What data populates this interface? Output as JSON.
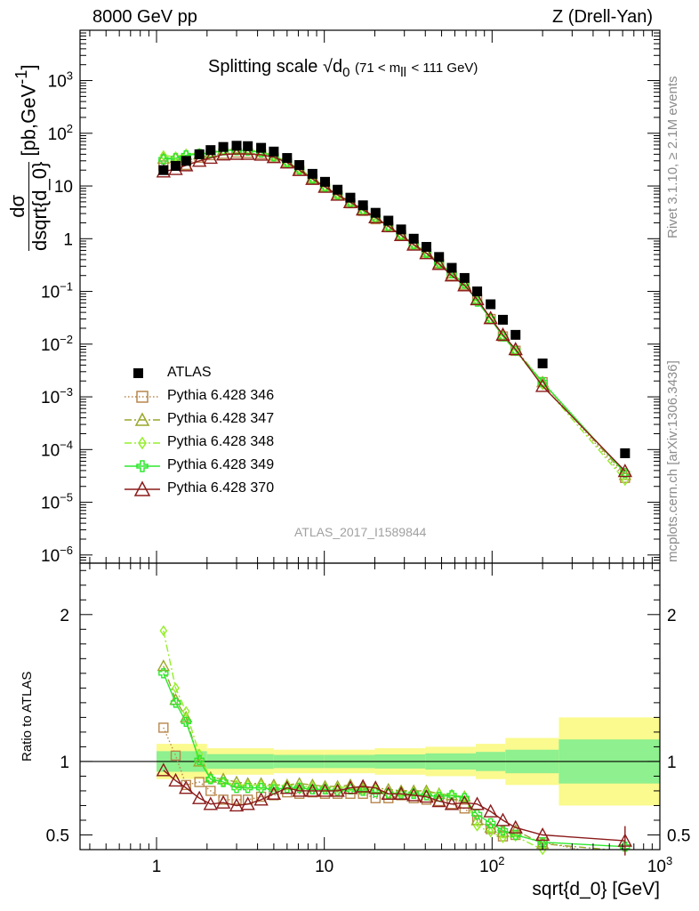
{
  "header": {
    "left": "8000 GeV pp",
    "right": "Z (Drell-Yan)"
  },
  "side_texts": {
    "rivet": "Rivet 3.1.10, ≥ 2.1M events",
    "mcplots": "mcplots.cern.ch [arXiv:1306.3436]"
  },
  "watermark": "ATLAS_2017_I1589844",
  "colors": {
    "ATLAS": "#000000",
    "346": "#b8864b",
    "347": "#9aa62a",
    "348": "#95ee2a",
    "349": "#2ee82e",
    "370": "#8b1a1a",
    "band_inner": "#8ef08e",
    "band_outer": "#fafa8e"
  },
  "chart_data": {
    "type": "scatter",
    "title": "Splitting scale",
    "title_symbol": "√d",
    "title_sub": "0",
    "title_range": "(71 < m",
    "title_range_sub": "ll",
    "title_range_end": "< 111 GeV)",
    "xlabel": "sqrt{d_0} [GeV]",
    "ylabel": {
      "numerator": "dσ",
      "denominator": "dsqrt{d_0}",
      "unit": "[pb,GeV",
      "unit_sup": "-1",
      "unit_end": "]"
    },
    "ratio_ylabel": "Ratio to ATLAS",
    "xscale": "log",
    "xlim": [
      0.35,
      1000
    ],
    "yscale": "log",
    "ylim": [
      7e-07,
      9000
    ],
    "ratio_ylim": [
      0.4,
      2.35
    ],
    "legend_position": "bottom-left",
    "x_ticks": [
      {
        "base": "1",
        "exp": ""
      },
      {
        "base": "10",
        "exp": ""
      },
      {
        "base": "10",
        "exp": "2"
      },
      {
        "base": "10",
        "exp": "3"
      }
    ],
    "y_ticks": [
      {
        "base": "10",
        "exp": "3"
      },
      {
        "base": "10",
        "exp": "2"
      },
      {
        "base": "10",
        "exp": ""
      },
      {
        "base": "1",
        "exp": ""
      },
      {
        "base": "10",
        "exp": "−1"
      },
      {
        "base": "10",
        "exp": "−2"
      },
      {
        "base": "10",
        "exp": "−3"
      },
      {
        "base": "10",
        "exp": "−4"
      },
      {
        "base": "10",
        "exp": "−5"
      },
      {
        "base": "10",
        "exp": "−6"
      }
    ],
    "ratio_ticks": [
      "2",
      "1",
      "0.5"
    ],
    "x": [
      1.1,
      1.3,
      1.5,
      1.8,
      2.1,
      2.5,
      3.0,
      3.5,
      4.2,
      5.0,
      6.0,
      7.1,
      8.5,
      10.1,
      12.0,
      14.3,
      17.0,
      20.2,
      24.1,
      28.7,
      34.1,
      40.6,
      48.3,
      57.5,
      68.5,
      81.5,
      98,
      116,
      138,
      200,
      620
    ],
    "atlas": {
      "name": "ATLAS",
      "values": [
        20,
        24,
        30,
        40,
        48,
        55,
        58,
        57,
        53,
        45,
        34,
        25,
        17,
        12,
        8.5,
        6.0,
        4.3,
        3.1,
        2.2,
        1.5,
        1.0,
        0.7,
        0.45,
        0.28,
        0.18,
        0.1,
        0.057,
        0.029,
        0.015,
        0.0043,
        8.5e-05
      ],
      "band_edges": [
        1.0,
        2.0,
        5.0,
        10.0,
        20.0,
        40.0,
        80.0,
        120.0,
        250.0,
        1000.0
      ],
      "band_inner": [
        0.07,
        0.05,
        0.045,
        0.045,
        0.048,
        0.055,
        0.065,
        0.08,
        0.15
      ],
      "band_outer": [
        0.12,
        0.09,
        0.08,
        0.08,
        0.09,
        0.1,
        0.12,
        0.16,
        0.3
      ]
    },
    "series": [
      {
        "name": "Pythia 6.428 346",
        "values": [
          24.6,
          25.0,
          25.1,
          34.4,
          38.4,
          40.7,
          42.9,
          42.2,
          40.3,
          34.6,
          26.9,
          19.5,
          13.4,
          9.4,
          6.6,
          4.7,
          3.37,
          2.34,
          1.65,
          1.16,
          0.75,
          0.52,
          0.33,
          0.2,
          0.13,
          0.072,
          0.03,
          0.014,
          0.0075,
          0.0019,
          2.9e-05
        ],
        "ratio": [
          1.23,
          1.04,
          0.84,
          0.86,
          0.8,
          0.74,
          0.74,
          0.74,
          0.76,
          0.77,
          0.79,
          0.78,
          0.79,
          0.78,
          0.78,
          0.78,
          0.78,
          0.75,
          0.75,
          0.77,
          0.75,
          0.74,
          0.73,
          0.71,
          0.68,
          0.6,
          0.54,
          0.49,
          0.5,
          0.45,
          0.34
        ]
      },
      {
        "name": "Pythia 6.428 347",
        "values": [
          33.0,
          34.1,
          39.0,
          40.0,
          42.7,
          48.4,
          49.9,
          48.5,
          45.1,
          37.8,
          28.6,
          21.3,
          14.3,
          10.0,
          7.1,
          5.1,
          3.53,
          2.54,
          1.78,
          1.2,
          0.8,
          0.56,
          0.35,
          0.22,
          0.14,
          0.071,
          0.031,
          0.015,
          0.008,
          0.0019,
          3.3e-05
        ],
        "ratio": [
          1.65,
          1.42,
          1.3,
          1.0,
          0.89,
          0.88,
          0.86,
          0.85,
          0.85,
          0.84,
          0.84,
          0.85,
          0.84,
          0.83,
          0.83,
          0.84,
          0.82,
          0.82,
          0.81,
          0.8,
          0.8,
          0.8,
          0.78,
          0.77,
          0.76,
          0.6,
          0.55,
          0.52,
          0.53,
          0.44,
          0.39
        ]
      },
      {
        "name": "Pythia 6.428 348",
        "values": [
          37.8,
          36.0,
          40.2,
          42.0,
          42.2,
          47.3,
          48.7,
          47.9,
          44.5,
          37.4,
          28.6,
          20.8,
          14.1,
          9.8,
          7.0,
          5.0,
          3.48,
          2.51,
          1.72,
          1.19,
          0.79,
          0.55,
          0.35,
          0.22,
          0.14,
          0.066,
          0.03,
          0.014,
          0.0074,
          0.0017,
          2.6e-05
        ],
        "ratio": [
          1.89,
          1.5,
          1.34,
          1.05,
          0.88,
          0.86,
          0.84,
          0.84,
          0.84,
          0.83,
          0.84,
          0.83,
          0.83,
          0.82,
          0.82,
          0.83,
          0.81,
          0.81,
          0.78,
          0.79,
          0.79,
          0.79,
          0.78,
          0.77,
          0.76,
          0.56,
          0.52,
          0.48,
          0.49,
          0.4,
          0.31
        ]
      },
      {
        "name": "Pythia 6.428 349",
        "values": [
          32.0,
          33.6,
          38.1,
          40.4,
          42.2,
          47.3,
          47.6,
          46.7,
          43.5,
          36.5,
          27.9,
          20.5,
          13.8,
          9.7,
          6.8,
          4.9,
          3.44,
          2.45,
          1.72,
          1.17,
          0.78,
          0.54,
          0.34,
          0.22,
          0.14,
          0.064,
          0.03,
          0.014,
          0.0075,
          0.0019,
          3.6e-05
        ],
        "ratio": [
          1.6,
          1.4,
          1.27,
          1.01,
          0.88,
          0.86,
          0.82,
          0.82,
          0.82,
          0.81,
          0.82,
          0.82,
          0.81,
          0.81,
          0.8,
          0.81,
          0.8,
          0.79,
          0.78,
          0.78,
          0.78,
          0.77,
          0.76,
          0.77,
          0.75,
          0.64,
          0.58,
          0.53,
          0.5,
          0.45,
          0.42
        ]
      },
      {
        "name": "Pythia 6.428 370",
        "values": [
          18.8,
          20.9,
          24.6,
          30.0,
          34.1,
          39.6,
          40.6,
          40.5,
          39.2,
          35.1,
          27.9,
          20.0,
          13.6,
          9.6,
          6.8,
          4.92,
          3.57,
          2.54,
          1.72,
          1.17,
          0.77,
          0.53,
          0.33,
          0.2,
          0.13,
          0.071,
          0.031,
          0.015,
          0.008,
          0.0016,
          3.9e-05
        ],
        "ratio": [
          0.94,
          0.87,
          0.82,
          0.75,
          0.71,
          0.72,
          0.7,
          0.71,
          0.74,
          0.78,
          0.82,
          0.8,
          0.8,
          0.8,
          0.8,
          0.82,
          0.83,
          0.82,
          0.78,
          0.78,
          0.77,
          0.76,
          0.73,
          0.71,
          0.72,
          0.71,
          0.66,
          0.6,
          0.55,
          0.5,
          0.46
        ],
        "last_ratio_err": 0.1
      }
    ]
  }
}
